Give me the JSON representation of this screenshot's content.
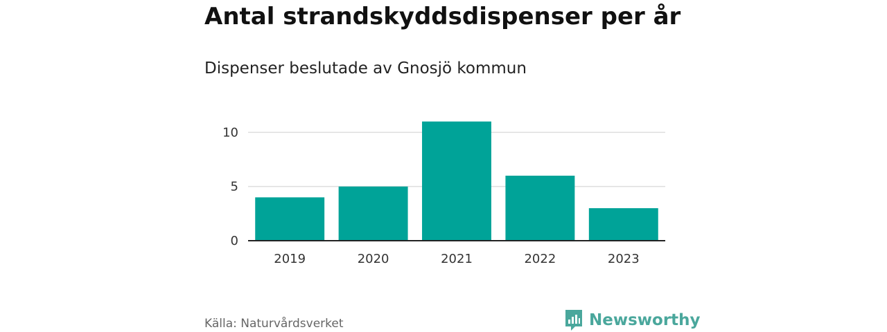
{
  "colors": {
    "bar": "#00a398",
    "grid": "#dddddd",
    "axis": "#222222",
    "brand": "#4aa79c"
  },
  "header": {
    "title": "Antal strandskyddsdispenser per år",
    "subtitle": "Dispenser beslutade av Gnosjö kommun"
  },
  "footer": {
    "source": "Källa: Naturvårdsverket",
    "brand_name": "Newsworthy",
    "brand_icon": "newsworthy-logo-icon"
  },
  "chart_data": {
    "type": "bar",
    "categories": [
      "2019",
      "2020",
      "2021",
      "2022",
      "2023"
    ],
    "values": [
      4,
      5,
      11,
      6,
      3
    ],
    "ylim": [
      0,
      12
    ],
    "yticks": [
      0,
      5,
      10
    ],
    "grid": true
  }
}
